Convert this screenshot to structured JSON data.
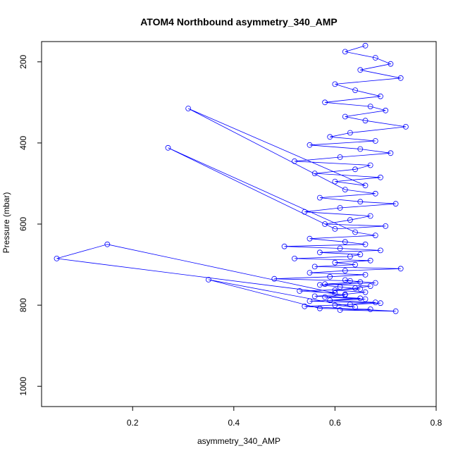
{
  "chart_data": {
    "type": "scatter",
    "title": "ATOM4 Northbound asymmetry_340_AMP",
    "xlabel": "asymmetry_340_AMP",
    "ylabel": "Pressure (mbar)",
    "xlim": [
      0.02,
      0.8
    ],
    "ylim": [
      1050,
      150
    ],
    "y_reversed": true,
    "x_ticks": [
      0.2,
      0.4,
      0.6,
      0.8
    ],
    "y_ticks": [
      200,
      400,
      600,
      800,
      1000
    ],
    "grid": false,
    "color": "#0000ff",
    "series": [
      {
        "x": [
          0.66,
          0.62,
          0.68,
          0.71,
          0.65,
          0.73,
          0.6,
          0.64,
          0.69,
          0.58,
          0.67,
          0.7,
          0.62,
          0.66,
          0.74,
          0.63,
          0.59,
          0.68,
          0.55,
          0.65,
          0.71,
          0.61,
          0.52,
          0.67,
          0.64,
          0.56,
          0.69,
          0.6,
          0.66,
          0.31,
          0.62,
          0.68,
          0.57,
          0.65,
          0.72,
          0.61,
          0.54,
          0.67,
          0.63,
          0.58,
          0.7,
          0.6,
          0.27,
          0.64,
          0.68,
          0.55,
          0.62,
          0.66,
          0.5,
          0.61,
          0.69,
          0.57,
          0.65,
          0.63,
          0.52,
          0.67,
          0.6,
          0.64,
          0.56,
          0.73,
          0.62,
          0.55,
          0.66,
          0.59,
          0.48,
          0.63,
          0.68,
          0.57,
          0.61,
          0.65,
          0.53,
          0.6,
          0.15,
          0.05,
          0.62,
          0.58,
          0.66,
          0.55,
          0.69,
          0.6,
          0.64,
          0.35,
          0.57,
          0.67,
          0.61,
          0.72,
          0.54,
          0.63,
          0.68,
          0.59,
          0.65,
          0.56,
          0.62,
          0.66,
          0.6,
          0.64,
          0.67,
          0.58,
          0.65,
          0.62
        ],
        "y": [
          160,
          175,
          190,
          205,
          220,
          240,
          255,
          270,
          285,
          300,
          310,
          320,
          335,
          345,
          360,
          375,
          385,
          395,
          405,
          415,
          425,
          435,
          445,
          455,
          465,
          475,
          485,
          495,
          505,
          315,
          515,
          525,
          535,
          545,
          550,
          560,
          570,
          580,
          590,
          600,
          605,
          612,
          412,
          620,
          628,
          636,
          644,
          650,
          655,
          660,
          665,
          670,
          675,
          680,
          685,
          690,
          695,
          700,
          705,
          710,
          715,
          720,
          725,
          730,
          735,
          740,
          745,
          750,
          755,
          760,
          765,
          770,
          650,
          685,
          775,
          780,
          785,
          790,
          795,
          800,
          805,
          737,
          808,
          810,
          812,
          815,
          803,
          798,
          793,
          788,
          783,
          778,
          773,
          768,
          763,
          758,
          753,
          748,
          743,
          738
        ]
      }
    ]
  }
}
